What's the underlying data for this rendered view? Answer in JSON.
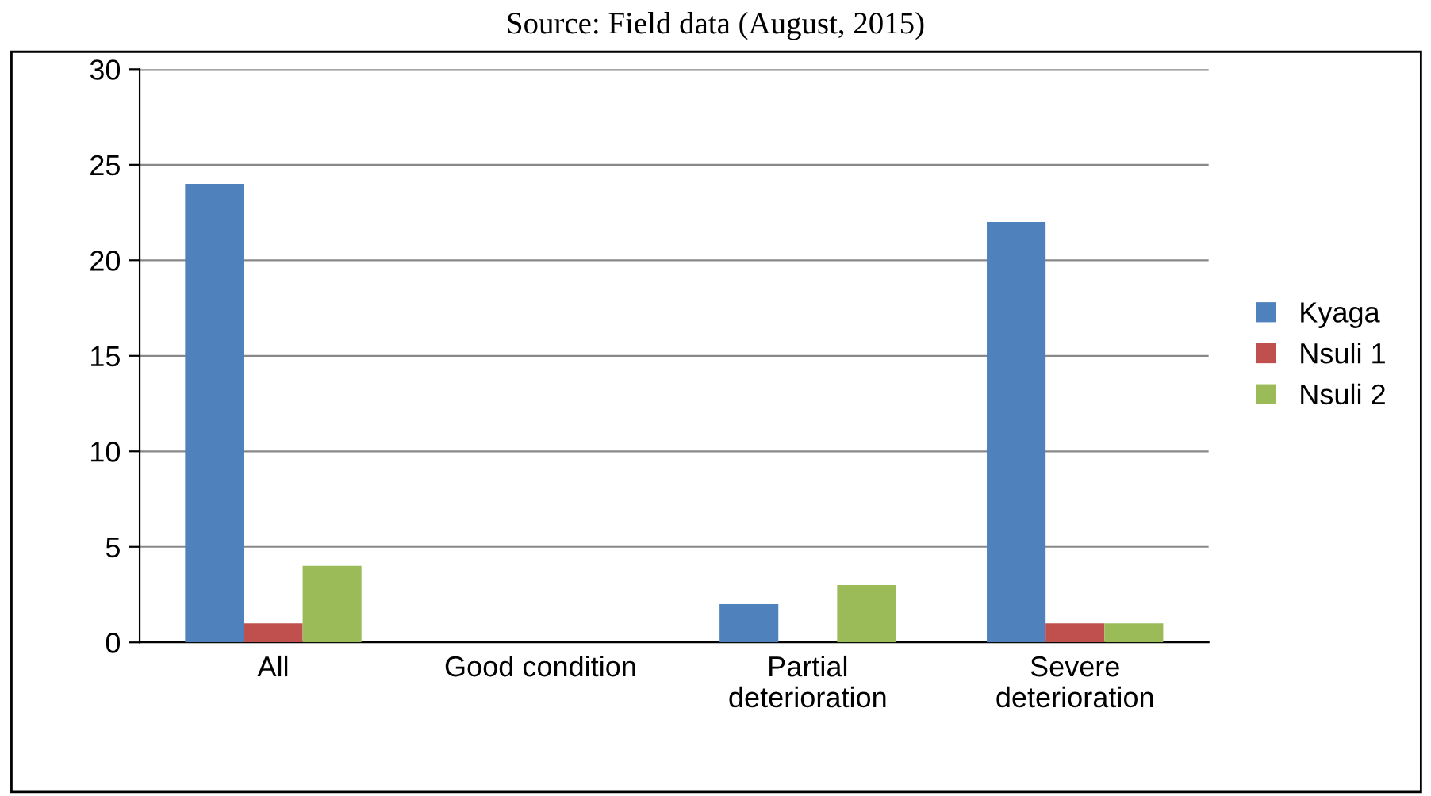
{
  "chart_data": {
    "type": "bar",
    "categories": [
      "All",
      "Good condition",
      "Partial\ndeterioration",
      "Severe\ndeterioration"
    ],
    "series": [
      {
        "name": "Kyaga",
        "color": "#4f81bd",
        "values": [
          24,
          0,
          2,
          22
        ]
      },
      {
        "name": "Nsuli 1",
        "color": "#c0504d",
        "values": [
          1,
          0,
          0,
          1
        ]
      },
      {
        "name": "Nsuli 2",
        "color": "#9bbb59",
        "values": [
          4,
          0,
          3,
          1
        ]
      }
    ],
    "ylim": [
      0,
      30
    ],
    "yticks": [
      0,
      5,
      10,
      15,
      20,
      25,
      30
    ],
    "grid": "y",
    "legend": "right",
    "annotations": [
      "Source: Field data (August, 2015)"
    ]
  }
}
